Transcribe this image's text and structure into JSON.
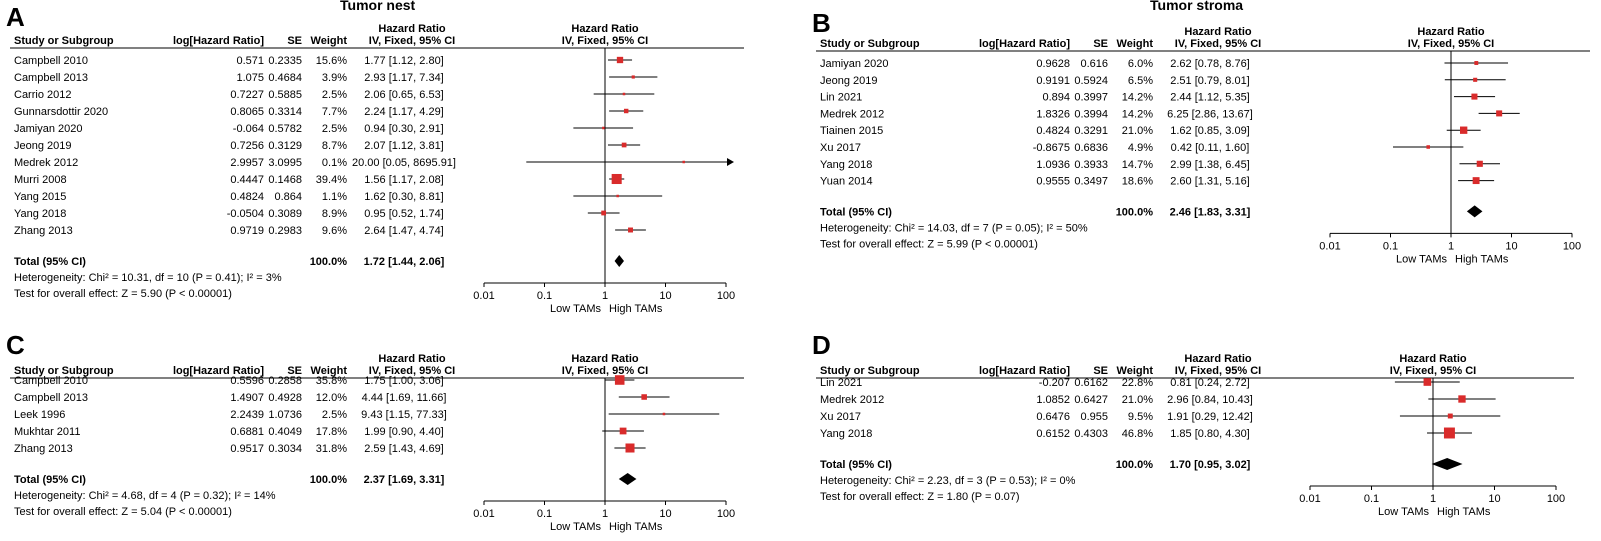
{
  "headers": {
    "study": "Study or Subgroup",
    "log_hr": "log[Hazard Ratio]",
    "se": "SE",
    "weight": "Weight",
    "hr_top": "Hazard Ratio",
    "hr_method": "IV, Fixed, 95% CI",
    "plot_top": "Hazard Ratio",
    "plot_method": "IV, Fixed, 95% CI"
  },
  "colors": {
    "marker": "#d92b2b",
    "diamond": "#000000",
    "line": "#000000"
  },
  "chart_data": [
    {
      "type": "forest",
      "letter": "A",
      "title": "Tumor nest",
      "x_scale": "log10",
      "ticks": [
        "0.01",
        "0.1",
        "1",
        "10",
        "100"
      ],
      "tick_values": [
        0.01,
        0.1,
        1,
        10,
        100
      ],
      "xlabel_left": "Low TAMs",
      "xlabel_right": "High TAMs",
      "studies": [
        {
          "name": "Campbell 2010",
          "log_hr": "0.571",
          "se": "0.2335",
          "weight": "15.6%",
          "ci": "1.77 [1.12, 2.80]",
          "hr": 1.77,
          "lo": 1.12,
          "hi": 2.8,
          "w": 15.6
        },
        {
          "name": "Campbell 2013",
          "log_hr": "1.075",
          "se": "0.4684",
          "weight": "3.9%",
          "ci": "2.93 [1.17, 7.34]",
          "hr": 2.93,
          "lo": 1.17,
          "hi": 7.34,
          "w": 3.9
        },
        {
          "name": "Carrio 2012",
          "log_hr": "0.7227",
          "se": "0.5885",
          "weight": "2.5%",
          "ci": "2.06 [0.65, 6.53]",
          "hr": 2.06,
          "lo": 0.65,
          "hi": 6.53,
          "w": 2.5
        },
        {
          "name": "Gunnarsdottir 2020",
          "log_hr": "0.8065",
          "se": "0.3314",
          "weight": "7.7%",
          "ci": "2.24 [1.17, 4.29]",
          "hr": 2.24,
          "lo": 1.17,
          "hi": 4.29,
          "w": 7.7
        },
        {
          "name": "Jamiyan 2020",
          "log_hr": "-0.064",
          "se": "0.5782",
          "weight": "2.5%",
          "ci": "0.94 [0.30, 2.91]",
          "hr": 0.94,
          "lo": 0.3,
          "hi": 2.91,
          "w": 2.5
        },
        {
          "name": "Jeong 2019",
          "log_hr": "0.7256",
          "se": "0.3129",
          "weight": "8.7%",
          "ci": "2.07 [1.12, 3.81]",
          "hr": 2.07,
          "lo": 1.12,
          "hi": 3.81,
          "w": 8.7
        },
        {
          "name": "Medrek 2012",
          "log_hr": "2.9957",
          "se": "3.0995",
          "weight": "0.1%",
          "ci": "20.00 [0.05, 8695.91]",
          "hr": 20.0,
          "lo": 0.05,
          "hi": 8695.91,
          "w": 0.1
        },
        {
          "name": "Murri 2008",
          "log_hr": "0.4447",
          "se": "0.1468",
          "weight": "39.4%",
          "ci": "1.56 [1.17, 2.08]",
          "hr": 1.56,
          "lo": 1.17,
          "hi": 2.08,
          "w": 39.4
        },
        {
          "name": "Yang 2015",
          "log_hr": "0.4824",
          "se": "0.864",
          "weight": "1.1%",
          "ci": "1.62 [0.30, 8.81]",
          "hr": 1.62,
          "lo": 0.3,
          "hi": 8.81,
          "w": 1.1
        },
        {
          "name": "Yang 2018",
          "log_hr": "-0.0504",
          "se": "0.3089",
          "weight": "8.9%",
          "ci": "0.95 [0.52, 1.74]",
          "hr": 0.95,
          "lo": 0.52,
          "hi": 1.74,
          "w": 8.9
        },
        {
          "name": "Zhang 2013",
          "log_hr": "0.9719",
          "se": "0.2983",
          "weight": "9.6%",
          "ci": "2.64 [1.47, 4.74]",
          "hr": 2.64,
          "lo": 1.47,
          "hi": 4.74,
          "w": 9.6
        }
      ],
      "total": {
        "label": "Total (95% CI)",
        "weight": "100.0%",
        "ci": "1.72 [1.44, 2.06]",
        "hr": 1.72,
        "lo": 1.44,
        "hi": 2.06
      },
      "heterogeneity": "Heterogeneity: Chi² = 10.31, df = 10 (P = 0.41); I² = 3%",
      "overall": "Test for overall effect: Z = 5.90 (P < 0.00001)"
    },
    {
      "type": "forest",
      "letter": "B",
      "title": "Tumor stroma",
      "x_scale": "log10",
      "ticks": [
        "0.01",
        "0.1",
        "1",
        "10",
        "100"
      ],
      "tick_values": [
        0.01,
        0.1,
        1,
        10,
        100
      ],
      "xlabel_left": "Low TAMs",
      "xlabel_right": "High TAMs",
      "studies": [
        {
          "name": "Jamiyan 2020",
          "log_hr": "0.9628",
          "se": "0.616",
          "weight": "6.0%",
          "ci": "2.62 [0.78, 8.76]",
          "hr": 2.62,
          "lo": 0.78,
          "hi": 8.76,
          "w": 6.0
        },
        {
          "name": "Jeong 2019",
          "log_hr": "0.9191",
          "se": "0.5924",
          "weight": "6.5%",
          "ci": "2.51 [0.79, 8.01]",
          "hr": 2.51,
          "lo": 0.79,
          "hi": 8.01,
          "w": 6.5
        },
        {
          "name": "Lin 2021",
          "log_hr": "0.894",
          "se": "0.3997",
          "weight": "14.2%",
          "ci": "2.44 [1.12, 5.35]",
          "hr": 2.44,
          "lo": 1.12,
          "hi": 5.35,
          "w": 14.2
        },
        {
          "name": "Medrek 2012",
          "log_hr": "1.8326",
          "se": "0.3994",
          "weight": "14.2%",
          "ci": "6.25 [2.86, 13.67]",
          "hr": 6.25,
          "lo": 2.86,
          "hi": 13.67,
          "w": 14.2
        },
        {
          "name": "Tiainen 2015",
          "log_hr": "0.4824",
          "se": "0.3291",
          "weight": "21.0%",
          "ci": "1.62 [0.85, 3.09]",
          "hr": 1.62,
          "lo": 0.85,
          "hi": 3.09,
          "w": 21.0
        },
        {
          "name": "Xu 2017",
          "log_hr": "-0.8675",
          "se": "0.6836",
          "weight": "4.9%",
          "ci": "0.42 [0.11, 1.60]",
          "hr": 0.42,
          "lo": 0.11,
          "hi": 1.6,
          "w": 4.9
        },
        {
          "name": "Yang 2018",
          "log_hr": "1.0936",
          "se": "0.3933",
          "weight": "14.7%",
          "ci": "2.99 [1.38, 6.45]",
          "hr": 2.99,
          "lo": 1.38,
          "hi": 6.45,
          "w": 14.7
        },
        {
          "name": "Yuan 2014",
          "log_hr": "0.9555",
          "se": "0.3497",
          "weight": "18.6%",
          "ci": "2.60 [1.31, 5.16]",
          "hr": 2.6,
          "lo": 1.31,
          "hi": 5.16,
          "w": 18.6
        }
      ],
      "total": {
        "label": "Total (95% CI)",
        "weight": "100.0%",
        "ci": "2.46 [1.83, 3.31]",
        "hr": 2.46,
        "lo": 1.83,
        "hi": 3.31
      },
      "heterogeneity": "Heterogeneity: Chi² = 14.03, df = 7 (P = 0.05); I² = 50%",
      "overall": "Test for overall effect: Z = 5.99 (P < 0.00001)"
    },
    {
      "type": "forest",
      "letter": "C",
      "title": "",
      "x_scale": "log10",
      "ticks": [
        "0.01",
        "0.1",
        "1",
        "10",
        "100"
      ],
      "tick_values": [
        0.01,
        0.1,
        1,
        10,
        100
      ],
      "xlabel_left": "Low TAMs",
      "xlabel_right": "High TAMs",
      "studies": [
        {
          "name": "Campbell 2010",
          "log_hr": "0.5596",
          "se": "0.2858",
          "weight": "35.8%",
          "ci": "1.75 [1.00, 3.06]",
          "hr": 1.75,
          "lo": 1.0,
          "hi": 3.06,
          "w": 35.8
        },
        {
          "name": "Campbell 2013",
          "log_hr": "1.4907",
          "se": "0.4928",
          "weight": "12.0%",
          "ci": "4.44 [1.69, 11.66]",
          "hr": 4.44,
          "lo": 1.69,
          "hi": 11.66,
          "w": 12.0
        },
        {
          "name": "Leek 1996",
          "log_hr": "2.2439",
          "se": "1.0736",
          "weight": "2.5%",
          "ci": "9.43 [1.15, 77.33]",
          "hr": 9.43,
          "lo": 1.15,
          "hi": 77.33,
          "w": 2.5
        },
        {
          "name": "Mukhtar 2011",
          "log_hr": "0.6881",
          "se": "0.4049",
          "weight": "17.8%",
          "ci": "1.99 [0.90, 4.40]",
          "hr": 1.99,
          "lo": 0.9,
          "hi": 4.4,
          "w": 17.8
        },
        {
          "name": "Zhang 2013",
          "log_hr": "0.9517",
          "se": "0.3034",
          "weight": "31.8%",
          "ci": "2.59 [1.43, 4.69]",
          "hr": 2.59,
          "lo": 1.43,
          "hi": 4.69,
          "w": 31.8
        }
      ],
      "total": {
        "label": "Total (95% CI)",
        "weight": "100.0%",
        "ci": "2.37 [1.69, 3.31]",
        "hr": 2.37,
        "lo": 1.69,
        "hi": 3.31
      },
      "heterogeneity": "Heterogeneity: Chi² = 4.68, df = 4 (P = 0.32); I² = 14%",
      "overall": "Test for overall effect: Z = 5.04 (P < 0.00001)"
    },
    {
      "type": "forest",
      "letter": "D",
      "title": "",
      "x_scale": "log10",
      "ticks": [
        "0.01",
        "0.1",
        "1",
        "10",
        "100"
      ],
      "tick_values": [
        0.01,
        0.1,
        1,
        10,
        100
      ],
      "xlabel_left": "Low TAMs",
      "xlabel_right": "High TAMs",
      "studies": [
        {
          "name": "Lin 2021",
          "log_hr": "-0.207",
          "se": "0.6162",
          "weight": "22.8%",
          "ci": "0.81 [0.24, 2.72]",
          "hr": 0.81,
          "lo": 0.24,
          "hi": 2.72,
          "w": 22.8
        },
        {
          "name": "Medrek 2012",
          "log_hr": "1.0852",
          "se": "0.6427",
          "weight": "21.0%",
          "ci": "2.96 [0.84, 10.43]",
          "hr": 2.96,
          "lo": 0.84,
          "hi": 10.43,
          "w": 21.0
        },
        {
          "name": "Xu 2017",
          "log_hr": "0.6476",
          "se": "0.955",
          "weight": "9.5%",
          "ci": "1.91 [0.29, 12.42]",
          "hr": 1.91,
          "lo": 0.29,
          "hi": 12.42,
          "w": 9.5
        },
        {
          "name": "Yang 2018",
          "log_hr": "0.6152",
          "se": "0.4303",
          "weight": "46.8%",
          "ci": "1.85 [0.80, 4.30]",
          "hr": 1.85,
          "lo": 0.8,
          "hi": 4.3,
          "w": 46.8
        }
      ],
      "total": {
        "label": "Total (95% CI)",
        "weight": "100.0%",
        "ci": "1.70 [0.95, 3.02]",
        "hr": 1.7,
        "lo": 0.95,
        "hi": 3.02
      },
      "heterogeneity": "Heterogeneity: Chi² = 2.23, df = 3 (P = 0.53); I² = 0%",
      "overall": "Test for overall effect: Z = 1.80 (P = 0.07)"
    }
  ]
}
